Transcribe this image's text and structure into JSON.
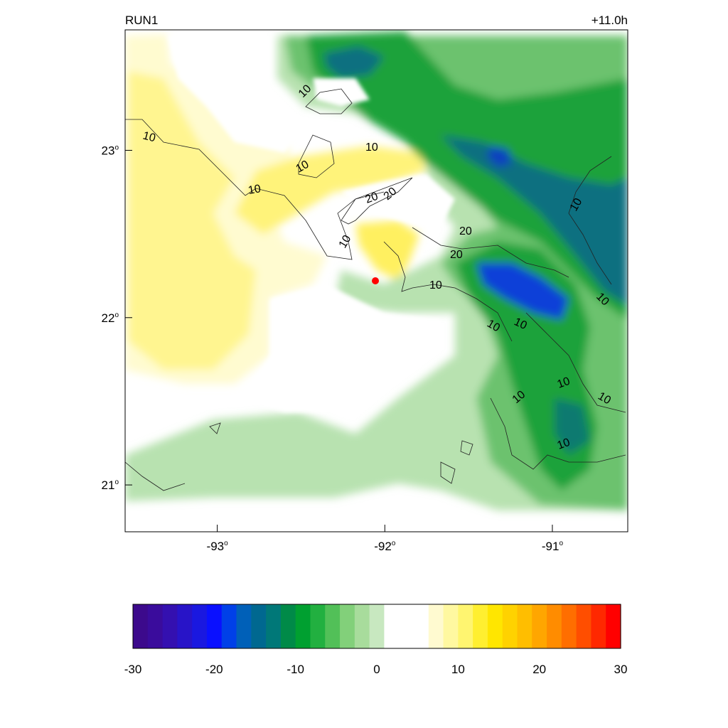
{
  "run_label": "RUN1",
  "lead_time": "+11.0h",
  "map": {
    "lon_ticks": [
      -93,
      -92,
      -91
    ],
    "lat_ticks": [
      23,
      22,
      21
    ],
    "degree_symbol": "o",
    "lon_range": [
      -93.55,
      -90.55
    ],
    "lat_range": [
      20.72,
      23.72
    ],
    "contour_labels": [
      "10",
      "20"
    ],
    "point_marker_color": "#ff0000"
  },
  "colorbar": {
    "min": -30,
    "max": 30,
    "ticks": [
      "-30",
      "-20",
      "-10",
      "0",
      "10",
      "20",
      "30"
    ],
    "levels": [
      -30,
      -28,
      -26,
      -24,
      -22,
      -20,
      -18,
      -16,
      -14,
      -12,
      -10,
      -8,
      -6,
      -4,
      -2,
      2,
      4,
      6,
      8,
      10,
      12,
      14,
      16,
      18,
      20,
      22,
      24,
      26,
      28,
      30
    ],
    "colors": [
      "#3c0a8c",
      "#3a0c9c",
      "#3410b0",
      "#2814c8",
      "#1a18e0",
      "#0a10ff",
      "#0040e8",
      "#0060b8",
      "#006890",
      "#007878",
      "#008a48",
      "#00a030",
      "#22b040",
      "#52c058",
      "#82d07a",
      "#a8dc9c",
      "#c8e8c0",
      "#ffffff",
      "#ffffff",
      "#ffffff",
      "#fffad0",
      "#fff8a0",
      "#fff570",
      "#ffef30",
      "#ffe600",
      "#ffd200",
      "#ffbe00",
      "#ffa600",
      "#ff8c00",
      "#ff6e00",
      "#ff4e00",
      "#ff2800",
      "#ff0000"
    ]
  }
}
